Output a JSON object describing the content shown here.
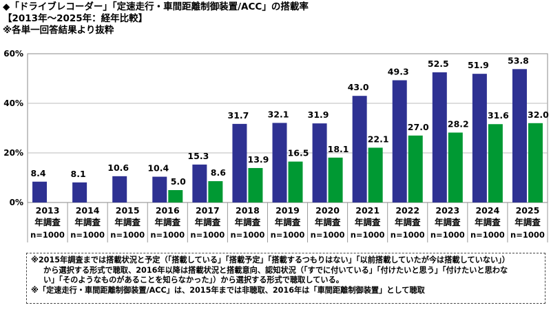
{
  "header": {
    "title": "◆「ドライブレコーダー」「定速走行・車間距離制御装置/ACC」の搭載率",
    "subtitle": "【2013年～2025年：経年比較】",
    "note": "※各単一回答結果より抜粋"
  },
  "chart_data": {
    "type": "bar",
    "categories": [
      "2013",
      "2014",
      "2015",
      "2016",
      "2017",
      "2018",
      "2019",
      "2020",
      "2021",
      "2022",
      "2023",
      "2024",
      "2025"
    ],
    "category_sublabel": "年調査",
    "sample_label": "n=1000",
    "ylim": [
      0,
      60
    ],
    "yticks": [
      "0%",
      "20%",
      "40%",
      "60%"
    ],
    "grid": true,
    "series": [
      {
        "values": [
          8.4,
          8.1,
          10.6,
          10.4,
          15.3,
          31.7,
          32.1,
          31.9,
          43.0,
          49.3,
          52.5,
          51.9,
          53.8
        ],
        "labels": [
          "8.4",
          "8.1",
          "10.6",
          "10.4",
          "15.3",
          "31.7",
          "32.1",
          "31.9",
          "43.0",
          "49.3",
          "52.5",
          "51.9",
          "53.8"
        ],
        "color": "#2e3192"
      },
      {
        "values": [
          null,
          null,
          null,
          5.0,
          8.6,
          13.9,
          16.5,
          18.1,
          22.1,
          27.0,
          28.2,
          31.6,
          32.0
        ],
        "labels": [
          "",
          "",
          "",
          "5.0",
          "8.6",
          "13.9",
          "16.5",
          "18.1",
          "22.1",
          "27.0",
          "28.2",
          "31.6",
          "32.0"
        ],
        "color": "#009933"
      }
    ]
  },
  "notes": {
    "line1": "※2015年調査までは搭載状況と予定（「搭載している」「搭載予定」「搭載するつもりはない」「以前搭載していたが今は搭載していない」）",
    "line2": "から選択する形式で聴取、2016年以降は搭載状況と搭載意向、認知状況（「すでに付いている」「付けたいと思う」「付けたいと思わな",
    "line3": "い」「そのようなものがあることを知らなかった」）から選択する形式で聴取している。",
    "line4": "※「定速走行・車間距離制御装置/ACC」は、2015年までは非聴取、2016年は「車間距離制御装置」として聴取"
  }
}
